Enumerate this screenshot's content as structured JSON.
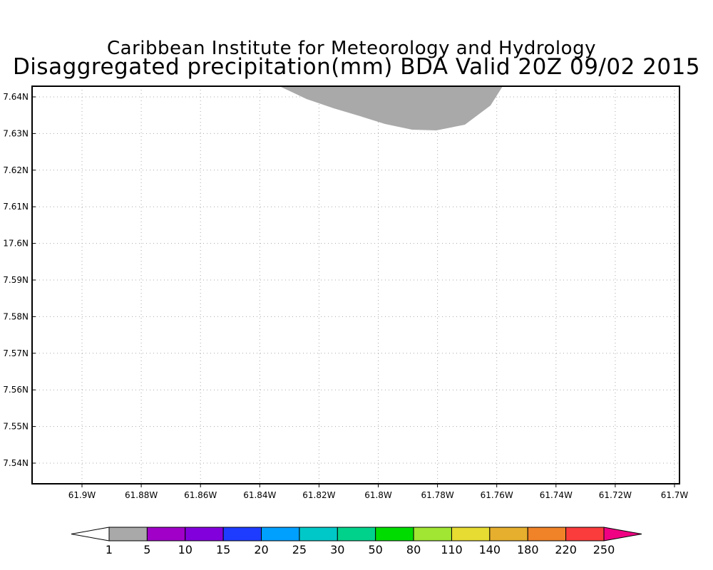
{
  "title": {
    "line1": "Caribbean Institute for Meteorology and Hydrology",
    "line2": "Disaggregated precipitation(mm) BDA Valid 20Z 09/02 2015"
  },
  "colors": {
    "frame": "#000000",
    "grid": "#a8a8a8",
    "precip_fill": "#a9a9a9"
  },
  "map": {
    "lon_ticks": [
      "61.9W",
      "61.88W",
      "61.86W",
      "61.84W",
      "61.82W",
      "61.8W",
      "61.78W",
      "61.76W",
      "61.74W",
      "61.72W",
      "61.7W"
    ],
    "lat_ticks": [
      "7.64N",
      "7.63N",
      "7.62N",
      "7.61N",
      "17.6N",
      "7.59N",
      "7.58N",
      "7.57N",
      "7.56N",
      "7.55N",
      "7.54N"
    ],
    "precip_region": {
      "category": "1-5 mm",
      "color": "#a9a9a9"
    }
  },
  "colorbar": {
    "segments": [
      {
        "color": "#ffffff"
      },
      {
        "color": "#a9a9a9"
      },
      {
        "color": "#a000c8"
      },
      {
        "color": "#8200dc"
      },
      {
        "color": "#1e3cff"
      },
      {
        "color": "#00a0ff"
      },
      {
        "color": "#00c8c8"
      },
      {
        "color": "#00d28c"
      },
      {
        "color": "#00dc00"
      },
      {
        "color": "#a0e632"
      },
      {
        "color": "#e6dc32"
      },
      {
        "color": "#e6af2d"
      },
      {
        "color": "#f08228"
      },
      {
        "color": "#fa3c3c"
      },
      {
        "color": "#f00082"
      }
    ],
    "labels": [
      "1",
      "5",
      "10",
      "15",
      "20",
      "25",
      "30",
      "50",
      "80",
      "110",
      "140",
      "180",
      "220",
      "250"
    ]
  }
}
